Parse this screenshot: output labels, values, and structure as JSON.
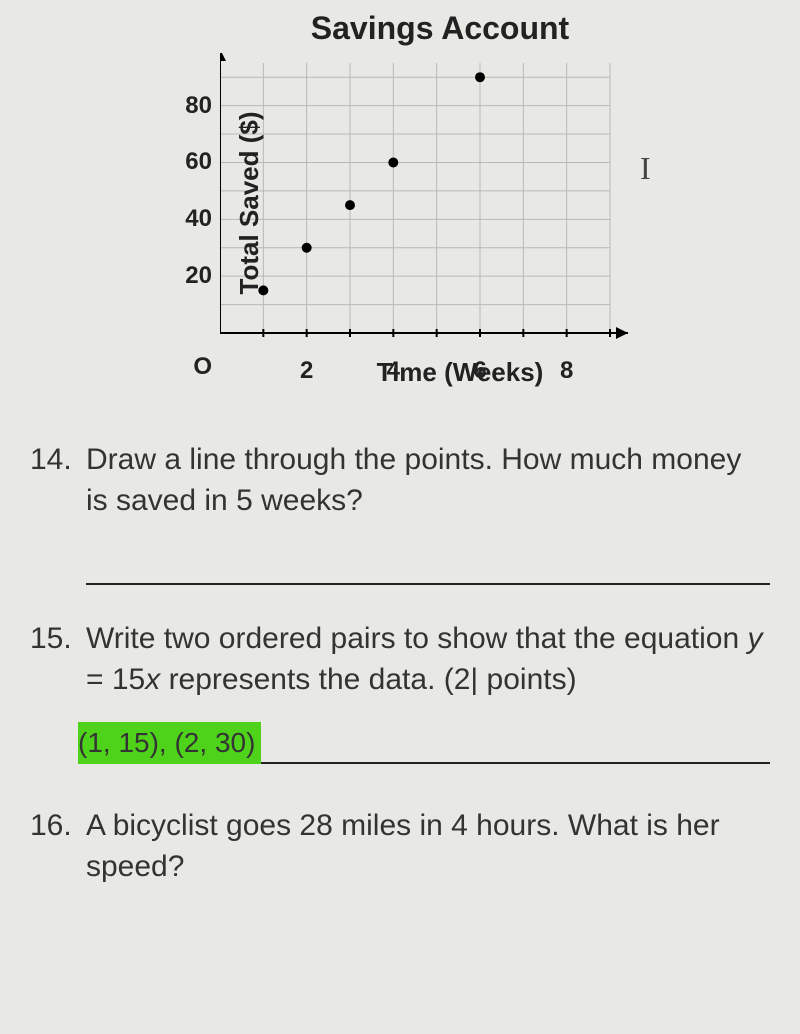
{
  "chart": {
    "type": "scatter",
    "title": "Savings Account",
    "xlabel": "Time (Weeks)",
    "ylabel": "Total Saved ($)",
    "origin_label": "O",
    "xlim": [
      0,
      9
    ],
    "ylim": [
      0,
      95
    ],
    "xticks": [
      2,
      4,
      6,
      8
    ],
    "yticks": [
      20,
      40,
      60,
      80
    ],
    "x_gridlines": [
      1,
      2,
      3,
      4,
      5,
      6,
      7,
      8,
      9
    ],
    "y_gridlines": [
      10,
      20,
      30,
      40,
      50,
      60,
      70,
      80,
      90
    ],
    "points": [
      {
        "x": 1,
        "y": 15
      },
      {
        "x": 2,
        "y": 30
      },
      {
        "x": 3,
        "y": 45
      },
      {
        "x": 4,
        "y": 60
      },
      {
        "x": 6,
        "y": 90
      }
    ],
    "point_color": "#000000",
    "point_radius": 5,
    "grid_color": "#b8b8b4",
    "axis_color": "#000000",
    "background_color": "#e8e8e4"
  },
  "cursor_glyph": "I",
  "questions": {
    "q14": {
      "num": "14.",
      "text": "Draw a line through the points. How much money is saved in 5 weeks?"
    },
    "q15": {
      "num": "15.",
      "text_a": "Write two ordered pairs to show that the equation ",
      "eq_y": "y",
      "eq_mid": " = 15",
      "eq_x": "x",
      "text_b": " represents the data. (2",
      "caret": "|",
      "text_c": " points)",
      "answer": "(1, 15), (2, 30)"
    },
    "q16": {
      "num": "16.",
      "text": "A bicyclist goes 28 miles in 4 hours. What is her speed?"
    }
  },
  "colors": {
    "highlight": "#4fd31a",
    "page_bg": "#e8e8e4",
    "text": "#222222"
  }
}
